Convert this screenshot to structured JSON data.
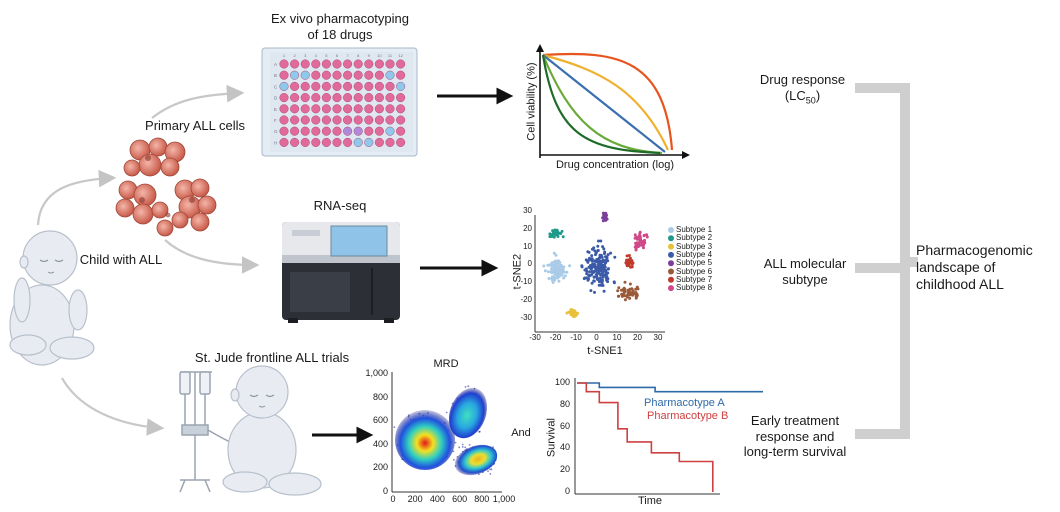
{
  "plate": {
    "title_line1": "Ex vivo pharmacotyping",
    "title_line2": "of 18 drugs",
    "columns": [
      "1",
      "2",
      "3",
      "4",
      "5",
      "6",
      "7",
      "8",
      "9",
      "10",
      "11",
      "12"
    ],
    "rows": [
      "A",
      "B",
      "C",
      "D",
      "E",
      "F",
      "G",
      "H"
    ]
  },
  "left": {
    "primary_cells": "Primary ALL cells",
    "child": "Child with ALL",
    "rnaseq": "RNA-seq",
    "trials": "St. Jude frontline ALL trials"
  },
  "viability_chart": {
    "type": "line",
    "ylabel": "Cell viability (%)",
    "xlabel": "Drug concentration (log)",
    "colors": [
      "#e8541e",
      "#f0b030",
      "#3a6fb0",
      "#6aaa3a",
      "#1e6b2a"
    ]
  },
  "tsne": {
    "type": "scatter",
    "xlabel": "t-SNE1",
    "ylabel": "t-SNE2",
    "xticks": [
      "-30",
      "-20",
      "-10",
      "0",
      "10",
      "20",
      "30"
    ],
    "yticks": [
      "30",
      "20",
      "10",
      "0",
      "-10",
      "-20",
      "-30"
    ],
    "legend": [
      {
        "name": "Subtype 1",
        "color": "#a9cbe8"
      },
      {
        "name": "Subtype 2",
        "color": "#1f9a8a"
      },
      {
        "name": "Subtype 3",
        "color": "#e8c13a"
      },
      {
        "name": "Subtype 4",
        "color": "#3b5aa8"
      },
      {
        "name": "Subtype 5",
        "color": "#7a3f9a"
      },
      {
        "name": "Subtype 6",
        "color": "#9a5a3a"
      },
      {
        "name": "Subtype 7",
        "color": "#c0392b"
      },
      {
        "name": "Subtype 8",
        "color": "#d04a8a"
      }
    ]
  },
  "mrd": {
    "type": "scatter",
    "title": "MRD",
    "yticks": [
      "1,000",
      "800",
      "600",
      "400",
      "200",
      "0"
    ],
    "xticks": [
      "0",
      "200",
      "400",
      "600",
      "800",
      "1,000"
    ]
  },
  "survival_chart": {
    "type": "line",
    "ylabel": "Survival",
    "xlabel": "Time",
    "yticks": [
      "100",
      "80",
      "60",
      "40",
      "20",
      "0"
    ],
    "ylim": [
      0,
      100
    ],
    "series": [
      {
        "name": "Pharmacotype A",
        "color": "#2e6aa8",
        "steps": [
          [
            0,
            100
          ],
          [
            1.2,
            100
          ],
          [
            1.2,
            96
          ],
          [
            4.2,
            96
          ],
          [
            4.2,
            92
          ],
          [
            10,
            92
          ]
        ]
      },
      {
        "name": "Pharmacotype B",
        "color": "#d04040",
        "steps": [
          [
            0,
            100
          ],
          [
            0.5,
            100
          ],
          [
            0.5,
            92
          ],
          [
            1.2,
            92
          ],
          [
            1.2,
            82
          ],
          [
            2.2,
            82
          ],
          [
            2.2,
            58
          ],
          [
            2.7,
            58
          ],
          [
            2.7,
            46
          ],
          [
            4,
            46
          ],
          [
            4,
            36
          ],
          [
            5.5,
            36
          ],
          [
            5.5,
            28
          ],
          [
            7.3,
            28
          ],
          [
            7.3,
            0
          ]
        ]
      }
    ]
  },
  "connector": {
    "and": "And"
  },
  "right": {
    "drug_response_line1": "Drug response",
    "drug_response_line2": "(LC",
    "drug_response_sub": "50",
    "drug_response_close": ")",
    "molecular_line1": "ALL molecular",
    "molecular_line2": "subtype",
    "early_line1": "Early treatment",
    "early_line2": "response and",
    "early_line3": "long-term survival",
    "summary_line1": "Pharmacogenomic",
    "summary_line2": "landscape of",
    "summary_line3": "childhood ALL"
  }
}
